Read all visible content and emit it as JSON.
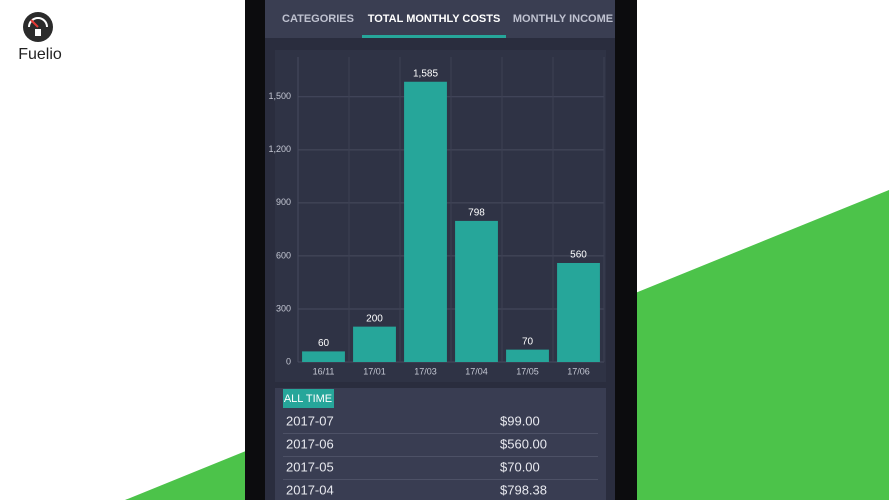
{
  "brand": "Fuelio",
  "tabs": [
    "CATEGORIES",
    "TOTAL MONTHLY COSTS",
    "MONTHLY INCOME"
  ],
  "chart_data": {
    "type": "bar",
    "categories": [
      "16/11",
      "17/01",
      "17/03",
      "17/04",
      "17/05",
      "17/06"
    ],
    "values": [
      60,
      200,
      1585,
      798,
      70,
      560
    ],
    "value_labels": [
      "60",
      "200",
      "1,585",
      "798",
      "70",
      "560"
    ],
    "color": "#26a69a",
    "ylim": [
      0,
      1725
    ],
    "yticks": [
      0,
      300,
      600,
      900,
      {
        "value": 1200,
        "label": "1,200"
      },
      {
        "value": 1500,
        "label": "1,500"
      }
    ],
    "grid": true
  },
  "table": {
    "filter": "ALL TIME",
    "rows": [
      [
        "2017-07",
        "$99.00"
      ],
      [
        "2017-06",
        "$560.00"
      ],
      [
        "2017-05",
        "$70.00"
      ],
      [
        "2017-04",
        "$798.38"
      ]
    ]
  }
}
